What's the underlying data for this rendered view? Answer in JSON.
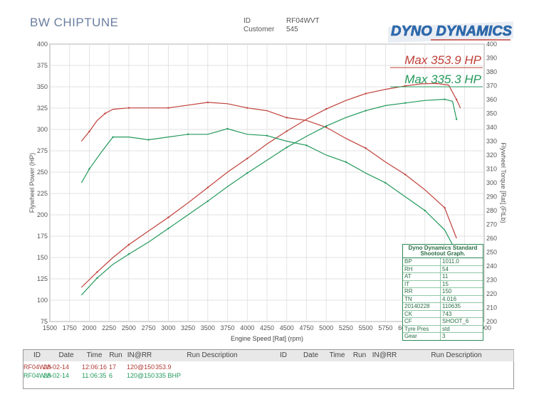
{
  "header": {
    "company": "BW CHIPTUNE",
    "id_label": "ID",
    "id_value": "RF04WVT",
    "customer_label": "Customer",
    "customer_value": "545",
    "logo_text": "DYNO DYNAMICS"
  },
  "chart_data": {
    "type": "line",
    "xlabel": "Engine Speed [Rat] (rpm)",
    "ylabel_left": "Flywheel Power (HP)",
    "ylabel_right": "Flywheel Torque [Rat] (FtLb)",
    "xlim": [
      1500,
      7000
    ],
    "ylim_left": [
      75,
      400
    ],
    "ylim_right": [
      200,
      400
    ],
    "x_ticks": [
      1500,
      1750,
      2000,
      2250,
      2500,
      2750,
      3000,
      3250,
      3500,
      3750,
      4000,
      4250,
      4500,
      4750,
      5000,
      5250,
      5500,
      5750,
      6000,
      6250,
      6500,
      6750,
      7000
    ],
    "y_left_ticks": [
      75,
      100,
      125,
      150,
      175,
      200,
      225,
      250,
      275,
      300,
      325,
      350,
      375,
      400
    ],
    "y_right_ticks": [
      200,
      210,
      220,
      230,
      240,
      250,
      260,
      270,
      280,
      290,
      300,
      310,
      320,
      330,
      340,
      350,
      360,
      370,
      380,
      390,
      400
    ],
    "grid": true,
    "annotations": [
      {
        "text": "Max 353.9 HP",
        "color": "#c0403a"
      },
      {
        "text": "Max 335.3 HP",
        "color": "#23995c"
      }
    ],
    "series": [
      {
        "axis": "left",
        "color": "#c0403a",
        "x": [
          1900,
          2100,
          2300,
          2500,
          2750,
          3000,
          3250,
          3500,
          3750,
          4000,
          4250,
          4500,
          4750,
          5000,
          5250,
          5500,
          5750,
          6000,
          6200,
          6400,
          6550,
          6650,
          6700
        ],
        "y": [
          115,
          133,
          150,
          165,
          181,
          197,
          214,
          232,
          250,
          266,
          283,
          298,
          312,
          324,
          334,
          342,
          347,
          351,
          353.4,
          353.9,
          352,
          335,
          325
        ]
      },
      {
        "axis": "right",
        "color": "#c0403a",
        "x": [
          1900,
          2000,
          2100,
          2200,
          2300,
          2500,
          2750,
          3000,
          3250,
          3500,
          3750,
          4000,
          4250,
          4500,
          4750,
          5000,
          5250,
          5500,
          5750,
          6000,
          6250,
          6500,
          6650
        ],
        "y": [
          330,
          337,
          345,
          350,
          353,
          354,
          354,
          354,
          356,
          358,
          357,
          354,
          352,
          347,
          345,
          340,
          332,
          325,
          315,
          306,
          295,
          282,
          260
        ]
      },
      {
        "axis": "left",
        "color": "#23995c",
        "x": [
          1900,
          2100,
          2300,
          2500,
          2750,
          3000,
          3250,
          3500,
          3750,
          4000,
          4250,
          4500,
          4750,
          5000,
          5250,
          5500,
          5750,
          6000,
          6250,
          6500,
          6600,
          6650
        ],
        "y": [
          106,
          126,
          142,
          154,
          168,
          184,
          200,
          216,
          233,
          249,
          264,
          279,
          292,
          304,
          314,
          322,
          328,
          331,
          334,
          335.3,
          333,
          312
        ]
      },
      {
        "axis": "right",
        "color": "#23995c",
        "x": [
          1900,
          2000,
          2150,
          2300,
          2500,
          2750,
          3000,
          3250,
          3500,
          3750,
          4000,
          4250,
          4500,
          4750,
          5000,
          5250,
          5500,
          5750,
          6000,
          6250,
          6500,
          6650
        ],
        "y": [
          300,
          310,
          322,
          333,
          333,
          331,
          333,
          335,
          335,
          339,
          335,
          334,
          330,
          327,
          320,
          315,
          307,
          300,
          290,
          280,
          266,
          250
        ]
      }
    ]
  },
  "legend_table": {
    "header": "Dyno Dynamics Standard Shootout Graph.",
    "rows": [
      {
        "k": "BP",
        "v": "1011.0"
      },
      {
        "k": "RH",
        "v": "54"
      },
      {
        "k": "AT",
        "v": "11"
      },
      {
        "k": "IT",
        "v": "15"
      },
      {
        "k": "RR",
        "v": "150"
      },
      {
        "k": "TN",
        "v": "4.016"
      },
      {
        "k": "20140228",
        "v": "110635"
      },
      {
        "k": "CK",
        "v": "743"
      },
      {
        "k": "CF",
        "v": "SHOOT_6"
      },
      {
        "k": "Tyre Pres",
        "v": "std"
      },
      {
        "k": "Gear",
        "v": "3"
      }
    ]
  },
  "runs_table": {
    "headers": [
      "ID",
      "Date",
      "Time",
      "Run",
      "IN@RR",
      "Run Description",
      "ID",
      "Date",
      "Time",
      "Run",
      "IN@RR",
      "Run Description"
    ],
    "rows": [
      {
        "id": "RF04WV\\",
        "date": "28-02-14",
        "time": "12:06:16",
        "run": "17",
        "inrr": "120@150",
        "desc": "353.9",
        "color": "red"
      },
      {
        "id": "RF04WV\\",
        "date": "28-02-14",
        "time": "11:06:35",
        "run": "6",
        "inrr": "120@150",
        "desc": "335 BHP",
        "color": "green"
      }
    ]
  }
}
